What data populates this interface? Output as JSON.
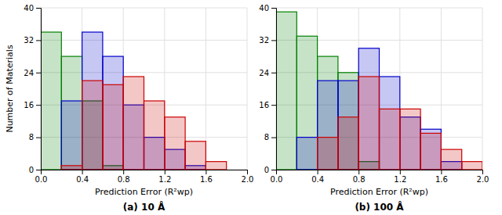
{
  "chart_data": [
    {
      "type": "histogram",
      "title": "(a) 10 Å",
      "bins": [
        0.0,
        0.2,
        0.4,
        0.6,
        0.8,
        1.0,
        1.2,
        1.4,
        1.6,
        1.8,
        2.0
      ],
      "series": [
        {
          "color": "#008000",
          "values": [
            34,
            28,
            17,
            1,
            0,
            0,
            0,
            0,
            0,
            0
          ]
        },
        {
          "color": "#0000cc",
          "values": [
            0,
            17,
            34,
            28,
            16,
            8,
            5,
            1,
            0,
            0
          ]
        },
        {
          "color": "#cc0000",
          "values": [
            0,
            1,
            22,
            21,
            23,
            17,
            13,
            7,
            2,
            0
          ]
        }
      ],
      "xlabel": "Prediction Error (R²wp)",
      "ylabel": "Number of Materials",
      "xlim": [
        0.0,
        2.0
      ],
      "ylim": [
        0,
        40
      ],
      "xticks": [
        {
          "value": 0.0,
          "label": "0.0"
        },
        0.4,
        0.8,
        1.2,
        1.6,
        {
          "value": 2.0,
          "label": "2.0"
        }
      ],
      "yticks": [
        0,
        8,
        16,
        24,
        32,
        40
      ],
      "grid": true
    },
    {
      "type": "histogram",
      "title": "(b) 100 Å",
      "bins": [
        0.0,
        0.2,
        0.4,
        0.6,
        0.8,
        1.0,
        1.2,
        1.4,
        1.6,
        1.8,
        2.0
      ],
      "series": [
        {
          "color": "#008000",
          "values": [
            39,
            33,
            28,
            24,
            2,
            0,
            0,
            0,
            0,
            0
          ]
        },
        {
          "color": "#0000cc",
          "values": [
            0,
            8,
            22,
            22,
            30,
            23,
            13,
            10,
            2,
            0
          ]
        },
        {
          "color": "#cc0000",
          "values": [
            0,
            0,
            8,
            13,
            23,
            15,
            15,
            9,
            5,
            2
          ]
        }
      ],
      "xlabel": "Prediction Error (R²wp)",
      "xlim": [
        0.0,
        2.0
      ],
      "ylim": [
        0,
        40
      ],
      "xticks": [
        {
          "value": 0.0,
          "label": "0.0"
        },
        0.4,
        0.8,
        1.2,
        1.6,
        {
          "value": 2.0,
          "label": "2.0"
        }
      ],
      "yticks": [
        0,
        8,
        16,
        24,
        32,
        40
      ],
      "grid": true
    }
  ]
}
